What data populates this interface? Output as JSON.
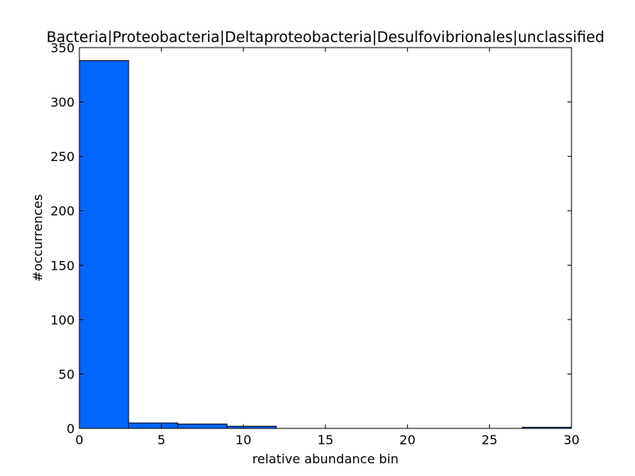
{
  "chart_data": {
    "type": "bar",
    "title": "Bacteria|Proteobacteria|Deltaproteobacteria|Desulfovibrionales|unclassified",
    "xlabel": "relative abundance bin",
    "ylabel": "#occurrences",
    "xlim": [
      0,
      30
    ],
    "ylim": [
      0,
      350
    ],
    "xticks": [
      0,
      5,
      10,
      15,
      20,
      25,
      30
    ],
    "yticks": [
      0,
      50,
      100,
      150,
      200,
      250,
      300,
      350
    ],
    "bins": [
      {
        "start": 0,
        "end": 3,
        "value": 338
      },
      {
        "start": 3,
        "end": 6,
        "value": 5
      },
      {
        "start": 6,
        "end": 9,
        "value": 4
      },
      {
        "start": 9,
        "end": 12,
        "value": 2
      },
      {
        "start": 12,
        "end": 15,
        "value": 0
      },
      {
        "start": 15,
        "end": 18,
        "value": 0
      },
      {
        "start": 18,
        "end": 21,
        "value": 0
      },
      {
        "start": 21,
        "end": 24,
        "value": 0
      },
      {
        "start": 24,
        "end": 27,
        "value": 0
      },
      {
        "start": 27,
        "end": 30,
        "value": 1
      }
    ],
    "bar_color": "#0066ff",
    "grid": false,
    "legend": "none"
  }
}
